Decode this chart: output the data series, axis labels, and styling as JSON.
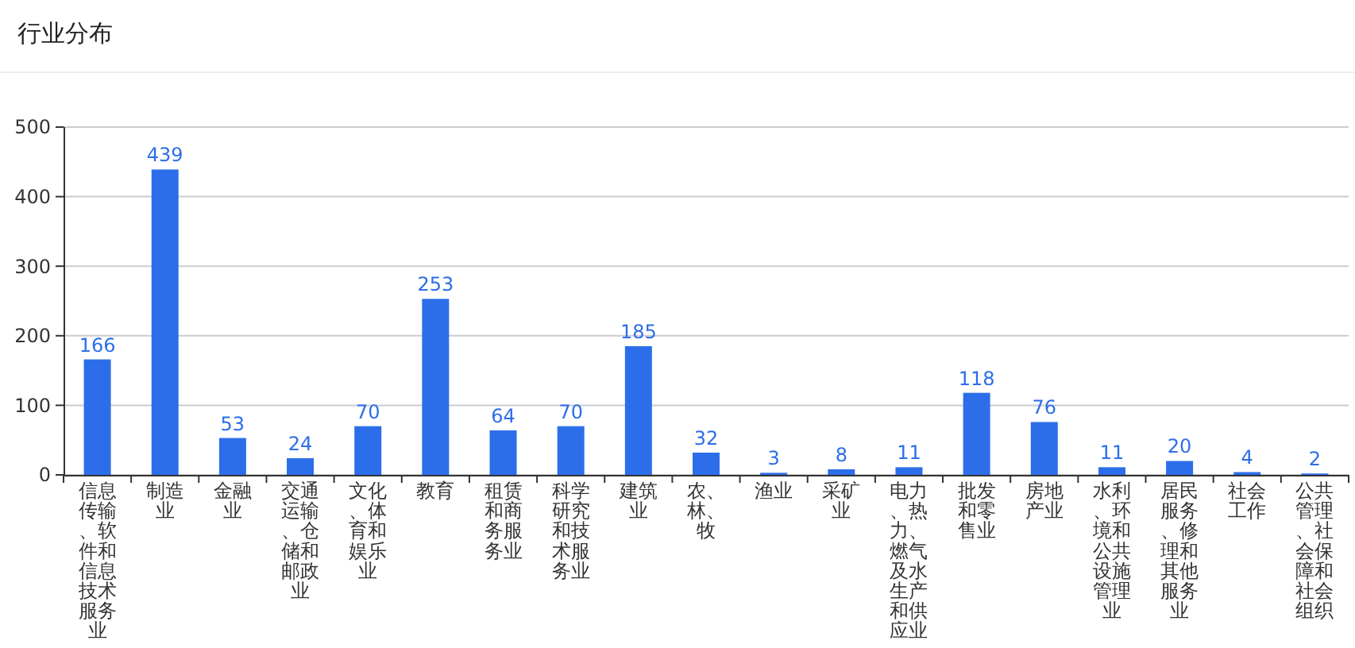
{
  "chart_data": {
    "type": "bar",
    "title": "行业分布",
    "categories": [
      "信息传输、软件和信息技术服务业",
      "制造业",
      "金融业",
      "交通运输、仓储和邮政业",
      "文化、体育和娱乐业",
      "教育",
      "租赁和商务服务业",
      "科学研究和技术服务业",
      "建筑业",
      "农、林、牧",
      "渔业",
      "采矿业",
      "电力、热力、燃气及水生产和供应业",
      "批发和零售业",
      "房地产业",
      "水利、环境和公共设施管理业",
      "居民服务、修理和其他服务业",
      "社会工作",
      "公共管理、社会保障和社会组织"
    ],
    "values": [
      166,
      439,
      53,
      24,
      70,
      253,
      64,
      70,
      185,
      32,
      3,
      8,
      11,
      118,
      76,
      11,
      20,
      4,
      2
    ],
    "color": "#2c6ee9",
    "ylim": [
      0,
      500
    ],
    "yticks": [
      0,
      100,
      200,
      300,
      400,
      500
    ],
    "grid": "y",
    "data_labels": true
  }
}
